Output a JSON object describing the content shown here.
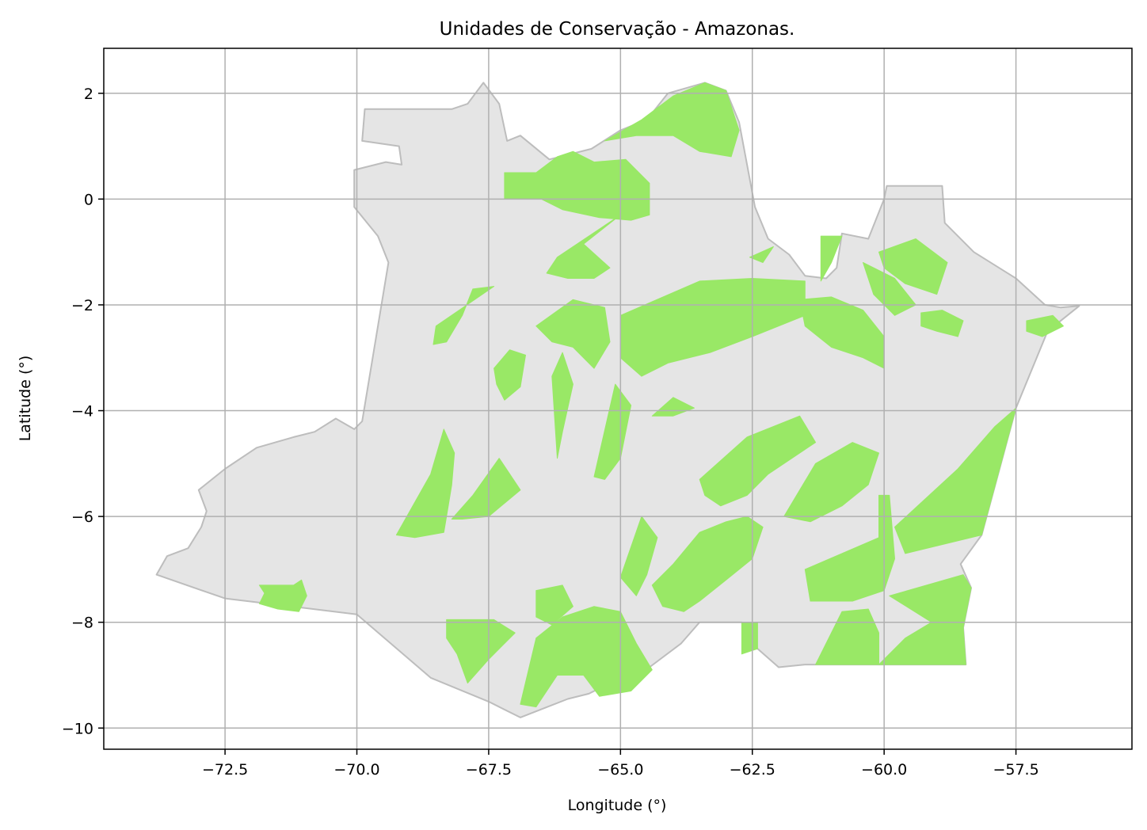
{
  "chart_data": {
    "type": "map",
    "title": "Unidades de Conservação - Amazonas.",
    "xlabel": "Longitude (°)",
    "ylabel": "Latitude (°)",
    "xlim": [
      -74.8,
      -55.3
    ],
    "ylim": [
      -10.4,
      2.85
    ],
    "x_ticks": [
      -72.5,
      -70.0,
      -67.5,
      -65.0,
      -62.5,
      -60.0,
      -57.5
    ],
    "x_tick_labels": [
      "−72.5",
      "−70.0",
      "−67.5",
      "−65.0",
      "−62.5",
      "−60.0",
      "−57.5"
    ],
    "y_ticks": [
      2,
      0,
      -2,
      -4,
      -6,
      -8,
      -10
    ],
    "y_tick_labels": [
      "2",
      "0",
      "−2",
      "−4",
      "−6",
      "−8",
      "−10"
    ],
    "grid": true,
    "colors": {
      "state_fill": "#e5e5e5",
      "state_edge": "#bdbdbd",
      "reserve_fill": "#99e866",
      "grid": "#b0b0b0"
    },
    "state_outline": [
      [
        -73.8,
        -7.1
      ],
      [
        -73.6,
        -6.75
      ],
      [
        -73.2,
        -6.6
      ],
      [
        -72.95,
        -6.2
      ],
      [
        -72.85,
        -5.9
      ],
      [
        -73.0,
        -5.5
      ],
      [
        -72.5,
        -5.1
      ],
      [
        -71.9,
        -4.7
      ],
      [
        -71.2,
        -4.5
      ],
      [
        -70.8,
        -4.4
      ],
      [
        -70.4,
        -4.15
      ],
      [
        -70.05,
        -4.35
      ],
      [
        -69.9,
        -4.2
      ],
      [
        -69.4,
        -1.2
      ],
      [
        -69.6,
        -0.7
      ],
      [
        -70.05,
        -0.15
      ],
      [
        -70.05,
        0.55
      ],
      [
        -69.45,
        0.7
      ],
      [
        -69.15,
        0.65
      ],
      [
        -69.2,
        1.0
      ],
      [
        -69.55,
        1.05
      ],
      [
        -69.9,
        1.1
      ],
      [
        -69.85,
        1.7
      ],
      [
        -68.2,
        1.7
      ],
      [
        -67.9,
        1.8
      ],
      [
        -67.6,
        2.2
      ],
      [
        -67.3,
        1.8
      ],
      [
        -67.15,
        1.1
      ],
      [
        -66.9,
        1.2
      ],
      [
        -66.35,
        0.75
      ],
      [
        -65.55,
        0.95
      ],
      [
        -65.0,
        1.3
      ],
      [
        -64.5,
        1.5
      ],
      [
        -64.1,
        2.0
      ],
      [
        -63.4,
        2.2
      ],
      [
        -63.0,
        2.05
      ],
      [
        -62.75,
        1.45
      ],
      [
        -62.6,
        0.65
      ],
      [
        -62.45,
        -0.15
      ],
      [
        -62.2,
        -0.75
      ],
      [
        -61.8,
        -1.05
      ],
      [
        -61.5,
        -1.45
      ],
      [
        -61.1,
        -1.5
      ],
      [
        -60.9,
        -1.3
      ],
      [
        -60.8,
        -0.65
      ],
      [
        -60.3,
        -0.75
      ],
      [
        -60.0,
        0.0
      ],
      [
        -59.95,
        0.25
      ],
      [
        -58.9,
        0.25
      ],
      [
        -58.85,
        -0.45
      ],
      [
        -58.3,
        -1.0
      ],
      [
        -57.5,
        -1.5
      ],
      [
        -56.95,
        -2.0
      ],
      [
        -56.65,
        -2.05
      ],
      [
        -56.3,
        -2.02
      ],
      [
        -56.9,
        -2.5
      ],
      [
        -57.5,
        -3.95
      ],
      [
        -58.15,
        -6.35
      ],
      [
        -58.55,
        -6.9
      ],
      [
        -58.35,
        -7.35
      ],
      [
        -58.5,
        -8.1
      ],
      [
        -58.45,
        -8.8
      ],
      [
        -60.1,
        -8.8
      ],
      [
        -61.5,
        -8.8
      ],
      [
        -62.0,
        -8.85
      ],
      [
        -62.4,
        -8.5
      ],
      [
        -62.7,
        -8.0
      ],
      [
        -63.5,
        -8.0
      ],
      [
        -63.85,
        -8.4
      ],
      [
        -64.45,
        -8.85
      ],
      [
        -65.3,
        -9.2
      ],
      [
        -65.6,
        -9.35
      ],
      [
        -66.0,
        -9.45
      ],
      [
        -66.9,
        -9.8
      ],
      [
        -67.5,
        -9.5
      ],
      [
        -68.6,
        -9.05
      ],
      [
        -70.0,
        -7.85
      ],
      [
        -72.5,
        -7.55
      ],
      [
        -73.8,
        -7.1
      ]
    ],
    "protected_areas": [
      [
        [
          -71.85,
          -7.3
        ],
        [
          -71.2,
          -7.3
        ],
        [
          -71.05,
          -7.2
        ],
        [
          -70.95,
          -7.5
        ],
        [
          -71.1,
          -7.8
        ],
        [
          -71.5,
          -7.75
        ],
        [
          -71.85,
          -7.65
        ],
        [
          -71.75,
          -7.45
        ]
      ],
      [
        [
          -69.25,
          -6.35
        ],
        [
          -68.6,
          -5.2
        ],
        [
          -68.35,
          -4.35
        ],
        [
          -68.15,
          -4.8
        ],
        [
          -68.2,
          -5.4
        ],
        [
          -68.3,
          -6.0
        ],
        [
          -68.35,
          -6.3
        ],
        [
          -68.9,
          -6.4
        ]
      ],
      [
        [
          -68.2,
          -6.05
        ],
        [
          -67.8,
          -5.6
        ],
        [
          -67.3,
          -4.9
        ],
        [
          -66.9,
          -5.5
        ],
        [
          -67.5,
          -6.0
        ],
        [
          -68.0,
          -6.05
        ]
      ],
      [
        [
          -68.3,
          -7.95
        ],
        [
          -67.4,
          -7.95
        ],
        [
          -67.0,
          -8.2
        ],
        [
          -67.5,
          -8.7
        ],
        [
          -67.9,
          -9.15
        ],
        [
          -68.1,
          -8.6
        ],
        [
          -68.3,
          -8.3
        ]
      ],
      [
        [
          -66.9,
          -9.55
        ],
        [
          -66.6,
          -8.3
        ],
        [
          -66.1,
          -7.9
        ],
        [
          -65.5,
          -7.7
        ],
        [
          -65.0,
          -7.8
        ],
        [
          -64.7,
          -8.4
        ],
        [
          -64.4,
          -8.9
        ],
        [
          -64.8,
          -9.3
        ],
        [
          -65.4,
          -9.4
        ],
        [
          -65.7,
          -9.0
        ],
        [
          -66.2,
          -9.0
        ],
        [
          -66.6,
          -9.6
        ]
      ],
      [
        [
          -66.6,
          -7.4
        ],
        [
          -66.1,
          -7.3
        ],
        [
          -65.9,
          -7.7
        ],
        [
          -66.3,
          -8.05
        ],
        [
          -66.6,
          -7.9
        ]
      ],
      [
        [
          -64.4,
          -7.3
        ],
        [
          -64.0,
          -6.9
        ],
        [
          -63.5,
          -6.3
        ],
        [
          -63.0,
          -6.1
        ],
        [
          -62.6,
          -6.0
        ],
        [
          -62.3,
          -6.2
        ],
        [
          -62.5,
          -6.8
        ],
        [
          -63.0,
          -7.2
        ],
        [
          -63.5,
          -7.6
        ],
        [
          -63.8,
          -7.8
        ],
        [
          -64.2,
          -7.7
        ]
      ],
      [
        [
          -65.0,
          -7.15
        ],
        [
          -64.6,
          -6.0
        ],
        [
          -64.3,
          -6.4
        ],
        [
          -64.5,
          -7.1
        ],
        [
          -64.7,
          -7.5
        ]
      ],
      [
        [
          -63.5,
          -5.3
        ],
        [
          -62.6,
          -4.5
        ],
        [
          -61.6,
          -4.1
        ],
        [
          -61.3,
          -4.6
        ],
        [
          -62.2,
          -5.2
        ],
        [
          -62.6,
          -5.6
        ],
        [
          -63.1,
          -5.8
        ],
        [
          -63.4,
          -5.6
        ]
      ],
      [
        [
          -61.9,
          -6.0
        ],
        [
          -61.3,
          -5.0
        ],
        [
          -60.6,
          -4.6
        ],
        [
          -60.1,
          -4.8
        ],
        [
          -60.3,
          -5.4
        ],
        [
          -60.8,
          -5.8
        ],
        [
          -61.4,
          -6.1
        ]
      ],
      [
        [
          -61.5,
          -7.0
        ],
        [
          -60.1,
          -6.4
        ],
        [
          -60.1,
          -5.6
        ],
        [
          -59.9,
          -5.6
        ],
        [
          -59.8,
          -6.8
        ],
        [
          -60.0,
          -7.4
        ],
        [
          -60.6,
          -7.6
        ],
        [
          -61.4,
          -7.6
        ]
      ],
      [
        [
          -59.8,
          -6.2
        ],
        [
          -58.6,
          -5.1
        ],
        [
          -57.9,
          -4.3
        ],
        [
          -57.5,
          -3.95
        ],
        [
          -58.15,
          -6.35
        ],
        [
          -59.6,
          -6.7
        ]
      ],
      [
        [
          -59.9,
          -7.5
        ],
        [
          -58.5,
          -7.1
        ],
        [
          -58.35,
          -7.35
        ],
        [
          -58.5,
          -8.1
        ],
        [
          -58.45,
          -8.8
        ],
        [
          -60.1,
          -8.8
        ],
        [
          -59.6,
          -8.3
        ],
        [
          -59.1,
          -8.0
        ]
      ],
      [
        [
          -61.3,
          -8.8
        ],
        [
          -60.8,
          -7.8
        ],
        [
          -60.3,
          -7.75
        ],
        [
          -60.1,
          -8.2
        ],
        [
          -60.1,
          -8.8
        ]
      ],
      [
        [
          -62.7,
          -8.0
        ],
        [
          -62.4,
          -8.0
        ],
        [
          -62.4,
          -8.5
        ],
        [
          -62.7,
          -8.6
        ]
      ],
      [
        [
          -67.4,
          -3.2
        ],
        [
          -67.1,
          -2.85
        ],
        [
          -66.8,
          -2.95
        ],
        [
          -66.9,
          -3.55
        ],
        [
          -67.2,
          -3.8
        ],
        [
          -67.35,
          -3.5
        ]
      ],
      [
        [
          -66.3,
          -3.35
        ],
        [
          -66.1,
          -2.9
        ],
        [
          -65.9,
          -3.5
        ],
        [
          -66.1,
          -4.4
        ],
        [
          -66.2,
          -4.9
        ]
      ],
      [
        [
          -65.5,
          -5.25
        ],
        [
          -65.1,
          -3.5
        ],
        [
          -64.8,
          -3.9
        ],
        [
          -65.0,
          -4.9
        ],
        [
          -65.3,
          -5.3
        ]
      ],
      [
        [
          -64.4,
          -4.1
        ],
        [
          -64.0,
          -3.75
        ],
        [
          -63.6,
          -3.95
        ],
        [
          -64.0,
          -4.1
        ]
      ],
      [
        [
          -68.5,
          -2.4
        ],
        [
          -67.4,
          -1.65
        ],
        [
          -67.8,
          -1.7
        ],
        [
          -68.0,
          -2.2
        ],
        [
          -68.3,
          -2.7
        ],
        [
          -68.55,
          -2.75
        ]
      ],
      [
        [
          -66.6,
          -2.4
        ],
        [
          -65.9,
          -1.9
        ],
        [
          -65.3,
          -2.05
        ],
        [
          -65.2,
          -2.7
        ],
        [
          -65.5,
          -3.2
        ],
        [
          -65.9,
          -2.8
        ],
        [
          -66.3,
          -2.7
        ]
      ],
      [
        [
          -65.0,
          -2.2
        ],
        [
          -63.5,
          -1.55
        ],
        [
          -62.5,
          -1.5
        ],
        [
          -61.5,
          -1.55
        ],
        [
          -61.5,
          -2.2
        ],
        [
          -62.5,
          -2.6
        ],
        [
          -63.3,
          -2.9
        ],
        [
          -64.1,
          -3.1
        ],
        [
          -64.6,
          -3.35
        ],
        [
          -65.0,
          -3.0
        ]
      ],
      [
        [
          -61.6,
          -1.9
        ],
        [
          -61.0,
          -1.85
        ],
        [
          -60.4,
          -2.1
        ],
        [
          -60.0,
          -2.6
        ],
        [
          -60.0,
          -3.2
        ],
        [
          -60.4,
          -3.0
        ],
        [
          -61.0,
          -2.8
        ],
        [
          -61.5,
          -2.4
        ]
      ],
      [
        [
          -67.2,
          0.5
        ],
        [
          -66.6,
          0.5
        ],
        [
          -66.2,
          0.8
        ],
        [
          -65.9,
          0.9
        ],
        [
          -65.5,
          0.7
        ],
        [
          -64.9,
          0.75
        ],
        [
          -64.45,
          0.3
        ],
        [
          -64.45,
          -0.3
        ],
        [
          -64.8,
          -0.4
        ],
        [
          -65.4,
          -0.35
        ],
        [
          -66.1,
          -0.2
        ],
        [
          -66.5,
          0.0
        ],
        [
          -67.2,
          0.0
        ]
      ],
      [
        [
          -66.2,
          -1.1
        ],
        [
          -65.0,
          -0.3
        ],
        [
          -65.7,
          -0.85
        ],
        [
          -65.2,
          -1.3
        ],
        [
          -65.5,
          -1.5
        ],
        [
          -66.0,
          -1.5
        ],
        [
          -66.4,
          -1.4
        ]
      ],
      [
        [
          -65.3,
          1.1
        ],
        [
          -64.6,
          1.5
        ],
        [
          -64.0,
          1.95
        ],
        [
          -63.4,
          2.2
        ],
        [
          -63.0,
          2.05
        ],
        [
          -62.75,
          1.3
        ],
        [
          -62.9,
          0.8
        ],
        [
          -63.5,
          0.9
        ],
        [
          -64.0,
          1.2
        ],
        [
          -64.7,
          1.2
        ]
      ],
      [
        [
          -61.2,
          -0.7
        ],
        [
          -60.8,
          -0.7
        ],
        [
          -61.0,
          -1.2
        ],
        [
          -61.2,
          -1.55
        ]
      ],
      [
        [
          -60.1,
          -1.0
        ],
        [
          -59.4,
          -0.75
        ],
        [
          -58.8,
          -1.2
        ],
        [
          -59.0,
          -1.8
        ],
        [
          -59.6,
          -1.6
        ],
        [
          -60.0,
          -1.3
        ]
      ],
      [
        [
          -60.4,
          -1.2
        ],
        [
          -59.8,
          -1.5
        ],
        [
          -59.4,
          -2.0
        ],
        [
          -59.8,
          -2.2
        ],
        [
          -60.2,
          -1.8
        ]
      ],
      [
        [
          -59.3,
          -2.15
        ],
        [
          -58.9,
          -2.1
        ],
        [
          -58.5,
          -2.3
        ],
        [
          -58.6,
          -2.6
        ],
        [
          -59.0,
          -2.5
        ],
        [
          -59.3,
          -2.4
        ]
      ],
      [
        [
          -57.3,
          -2.3
        ],
        [
          -56.8,
          -2.2
        ],
        [
          -56.6,
          -2.4
        ],
        [
          -57.0,
          -2.6
        ],
        [
          -57.3,
          -2.5
        ]
      ],
      [
        [
          -62.55,
          -1.1
        ],
        [
          -62.1,
          -0.9
        ],
        [
          -62.3,
          -1.2
        ]
      ]
    ]
  }
}
